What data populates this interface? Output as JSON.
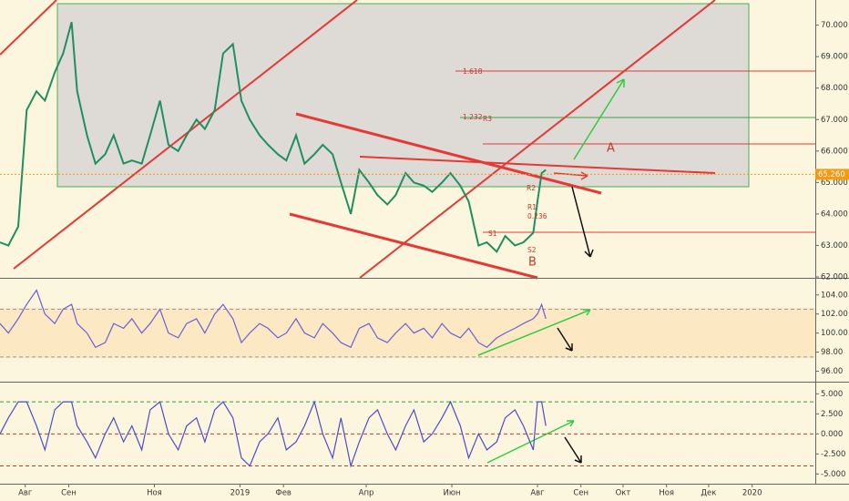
{
  "chart_data": [
    {
      "type": "line",
      "color": "#1f8f5f",
      "x": [
        -18,
        -12,
        -5,
        1,
        8,
        14,
        21,
        27,
        33,
        37,
        44,
        50,
        57,
        63,
        70,
        76,
        83,
        89,
        96,
        102,
        109,
        115,
        122,
        128,
        135,
        141,
        148,
        154,
        160,
        167,
        173,
        180,
        186,
        193,
        199,
        206,
        212,
        219,
        225,
        232,
        238,
        245,
        251,
        258,
        264,
        271,
        277,
        284,
        290,
        297,
        303,
        310,
        316,
        323,
        329,
        336,
        342,
        349,
        355,
        362,
        365,
        368,
        371
      ],
      "values": [
        63.1,
        63.0,
        63.6,
        67.3,
        67.9,
        67.6,
        68.5,
        69.1,
        70.1,
        67.9,
        66.5,
        65.6,
        65.9,
        66.5,
        65.6,
        65.7,
        65.6,
        66.5,
        67.6,
        66.2,
        66.0,
        66.5,
        67.0,
        66.7,
        67.3,
        69.1,
        69.4,
        67.6,
        67.0,
        66.5,
        66.2,
        65.9,
        65.7,
        66.5,
        65.6,
        65.9,
        66.2,
        65.9,
        65.0,
        64.0,
        65.4,
        65.0,
        64.6,
        64.3,
        64.6,
        65.3,
        65.0,
        64.9,
        64.7,
        65.0,
        65.3,
        64.9,
        64.4,
        63.0,
        63.1,
        62.8,
        63.3,
        63.0,
        63.1,
        63.4,
        64.4,
        65.3,
        65.4
      ],
      "xlim": [
        -18,
        563
      ],
      "ylim": [
        62,
        70.8
      ],
      "yticks": [
        {
          "value": 62,
          "label": "62.000"
        },
        {
          "value": 63,
          "label": "63.000"
        },
        {
          "value": 64,
          "label": "64.000"
        },
        {
          "value": 65,
          "label": "65.000"
        },
        {
          "value": 66,
          "label": "66.000"
        },
        {
          "value": 67,
          "label": "67.000"
        },
        {
          "value": 68,
          "label": "68.000"
        },
        {
          "value": 69,
          "label": "69.000"
        },
        {
          "value": 70,
          "label": "70.000"
        }
      ],
      "current_price": 65.26,
      "current_price_label": "65.260",
      "annotations": [
        "1.618",
        "1.232",
        "R3",
        "R2",
        "R1",
        "0.236",
        "S1",
        "S2",
        "B",
        "A"
      ]
    },
    {
      "type": "line",
      "color": "#6b5fd6",
      "x": [
        -18,
        -12,
        -5,
        1,
        8,
        14,
        21,
        27,
        33,
        37,
        44,
        50,
        57,
        63,
        70,
        76,
        83,
        89,
        96,
        102,
        109,
        115,
        122,
        128,
        135,
        141,
        148,
        154,
        160,
        167,
        173,
        180,
        186,
        193,
        199,
        206,
        212,
        219,
        225,
        232,
        238,
        245,
        251,
        258,
        264,
        271,
        277,
        284,
        290,
        297,
        303,
        310,
        316,
        323,
        329,
        336,
        342,
        349,
        355,
        362,
        365,
        368,
        371
      ],
      "values": [
        101,
        100,
        101.5,
        103,
        104.5,
        102,
        101,
        102.5,
        103,
        101,
        100,
        98.5,
        99,
        101,
        100.5,
        101.5,
        100,
        101,
        102.5,
        100,
        99.5,
        101,
        101.5,
        100,
        102,
        103,
        101.5,
        99,
        100,
        101,
        100.5,
        99.5,
        100,
        101.5,
        100,
        99.5,
        101,
        100,
        99,
        98.5,
        100.5,
        101,
        99.5,
        99,
        100,
        101,
        100,
        100.5,
        99.5,
        101,
        100,
        99.5,
        100.5,
        99,
        98.5,
        99.5,
        100,
        100.5,
        101,
        101.5,
        102,
        103,
        101.5
      ],
      "xlim": [
        -18,
        563
      ],
      "ylim": [
        95,
        105.6
      ],
      "yticks": [
        {
          "value": 96,
          "label": "96.00"
        },
        {
          "value": 98,
          "label": "98.00"
        },
        {
          "value": 100,
          "label": "100.00"
        },
        {
          "value": 102,
          "label": "102.00"
        },
        {
          "value": 104,
          "label": "104.00"
        }
      ]
    },
    {
      "type": "line",
      "color": "#4b4bd1",
      "x": [
        -18,
        -12,
        -5,
        1,
        8,
        14,
        21,
        27,
        33,
        37,
        44,
        50,
        57,
        63,
        70,
        76,
        83,
        89,
        96,
        102,
        109,
        115,
        122,
        128,
        135,
        141,
        148,
        154,
        160,
        167,
        173,
        180,
        186,
        193,
        199,
        206,
        212,
        219,
        225,
        232,
        238,
        245,
        251,
        258,
        264,
        271,
        277,
        284,
        290,
        297,
        303,
        310,
        316,
        323,
        329,
        336,
        342,
        349,
        355,
        362,
        365,
        368,
        371
      ],
      "values": [
        0,
        2,
        4,
        4,
        1,
        -2,
        3,
        4,
        4,
        1,
        -1,
        -3,
        0,
        2,
        -1,
        1,
        -2,
        3,
        4,
        0,
        -2,
        1,
        2,
        -1,
        3,
        4,
        2,
        -3,
        -4,
        -1,
        0,
        2,
        -2,
        -1,
        1,
        4,
        0,
        -3,
        2,
        -4,
        -1,
        2,
        3,
        0,
        -2,
        1,
        3,
        -1,
        0,
        2,
        4,
        1,
        -3,
        0,
        -2,
        -1,
        2,
        3,
        1,
        -2,
        4,
        4,
        1
      ],
      "xlim": [
        -18,
        563
      ],
      "ylim": [
        -6.1,
        6.4
      ],
      "yticks": [
        {
          "value": -5,
          "label": "-5.000"
        },
        {
          "value": -2.5,
          "label": "-2.500"
        },
        {
          "value": 0,
          "label": "0.000"
        },
        {
          "value": 2.5,
          "label": "2.500"
        },
        {
          "value": 5,
          "label": "5.000"
        }
      ],
      "xticks": [
        {
          "value": 0,
          "label": "Авг"
        },
        {
          "value": 31,
          "label": "Сен"
        },
        {
          "value": 92,
          "label": "Ноя"
        },
        {
          "value": 153,
          "label": "2019"
        },
        {
          "value": 184,
          "label": "Фев"
        },
        {
          "value": 243,
          "label": "Апр"
        },
        {
          "value": 304,
          "label": "Июн"
        },
        {
          "value": 365,
          "label": "Авг"
        },
        {
          "value": 396,
          "label": "Сен"
        },
        {
          "value": 426,
          "label": "Окт"
        },
        {
          "value": 457,
          "label": "Ноя"
        },
        {
          "value": 487,
          "label": "Дек"
        },
        {
          "value": 518,
          "label": "2020"
        }
      ]
    }
  ]
}
